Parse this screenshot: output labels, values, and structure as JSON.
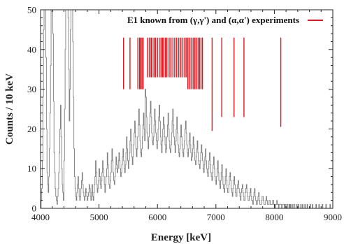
{
  "chart_data": {
    "type": "bar",
    "xlabel": "Energy [keV]",
    "ylabel": "Counts / 10 keV",
    "xlim": [
      4000,
      9000
    ],
    "ylim": [
      0,
      50
    ],
    "x_ticks": [
      4000,
      5000,
      6000,
      7000,
      8000,
      9000
    ],
    "y_ticks": [
      0,
      10,
      20,
      30,
      40,
      50
    ],
    "grid": false,
    "legend_placement": "top-right",
    "colors": {
      "spectrum": "#808080",
      "e1": "#e8141c",
      "axes": "#222222"
    },
    "series": [
      {
        "name": "",
        "style": "histogram",
        "bin_width": 10,
        "x_start": 4000,
        "values": [
          0,
          2,
          5,
          12,
          28,
          45,
          50,
          50,
          50,
          38,
          20,
          9,
          6,
          4,
          8,
          15,
          24,
          36,
          50,
          50,
          50,
          44,
          27,
          14,
          9,
          5,
          3,
          2,
          1,
          3,
          5,
          9,
          14,
          20,
          26,
          18,
          10,
          6,
          4,
          2,
          12,
          25,
          40,
          50,
          50,
          50,
          50,
          48,
          35,
          22,
          30,
          45,
          50,
          50,
          50,
          42,
          28,
          15,
          8,
          5,
          3,
          2,
          4,
          6,
          8,
          5,
          3,
          2,
          3,
          5,
          7,
          9,
          6,
          4,
          3,
          2,
          3,
          5,
          4,
          3,
          2,
          3,
          4,
          6,
          5,
          3,
          2,
          4,
          6,
          3,
          2,
          4,
          6,
          8,
          12,
          9,
          6,
          4,
          5,
          7,
          10,
          8,
          6,
          5,
          7,
          9,
          12,
          10,
          8,
          6,
          4,
          6,
          8,
          10,
          14,
          11,
          8,
          6,
          5,
          7,
          9,
          12,
          15,
          12,
          9,
          7,
          6,
          8,
          10,
          13,
          11,
          9,
          10,
          12,
          14,
          12,
          10,
          8,
          9,
          11,
          13,
          15,
          12,
          10,
          9,
          11,
          14,
          18,
          15,
          12,
          10,
          12,
          14,
          17,
          20,
          16,
          13,
          11,
          13,
          16,
          19,
          22,
          18,
          15,
          13,
          15,
          18,
          21,
          25,
          21,
          17,
          14,
          13,
          15,
          18,
          21,
          24,
          20,
          17,
          30,
          28,
          23,
          19,
          17,
          15,
          18,
          21,
          24,
          27,
          23,
          19,
          17,
          16,
          18,
          21,
          25,
          22,
          19,
          17,
          15,
          17,
          20,
          23,
          26,
          22,
          18,
          16,
          14,
          17,
          20,
          23,
          21,
          18,
          16,
          14,
          15,
          18,
          21,
          24,
          20,
          17,
          15,
          14,
          16,
          19,
          22,
          25,
          21,
          18,
          16,
          14,
          17,
          20,
          23,
          19,
          16,
          14,
          13,
          15,
          18,
          21,
          18,
          16,
          14,
          13,
          15,
          17,
          20,
          22,
          19,
          16,
          14,
          13,
          15,
          17,
          19,
          16,
          14,
          12,
          13,
          15,
          18,
          16,
          14,
          12,
          11,
          13,
          15,
          17,
          14,
          12,
          11,
          10,
          12,
          14,
          16,
          14,
          12,
          10,
          9,
          11,
          13,
          15,
          12,
          10,
          9,
          8,
          10,
          12,
          14,
          11,
          9,
          8,
          7,
          9,
          11,
          13,
          10,
          8,
          7,
          6,
          8,
          10,
          12,
          9,
          7,
          6,
          5,
          7,
          9,
          11,
          8,
          6,
          5,
          4,
          6,
          8,
          10,
          7,
          5,
          4,
          4,
          6,
          8,
          9,
          7,
          5,
          4,
          3,
          5,
          7,
          8,
          6,
          4,
          3,
          3,
          5,
          6,
          7,
          5,
          4,
          3,
          2,
          4,
          5,
          6,
          4,
          3,
          2,
          2,
          4,
          5,
          6,
          4,
          3,
          2,
          2,
          3,
          4,
          5,
          3,
          2,
          2,
          1,
          3,
          4,
          5,
          3,
          2,
          1,
          1,
          2,
          3,
          4,
          2,
          1,
          1,
          1,
          2,
          3,
          3,
          2,
          1,
          1,
          1,
          2,
          3,
          2,
          1,
          1,
          1,
          2,
          2,
          1,
          1,
          1,
          1,
          2,
          2,
          1,
          1,
          0,
          1,
          1,
          2,
          1,
          1,
          0,
          1,
          1,
          1,
          1,
          0,
          0,
          1,
          1,
          1,
          0,
          1,
          0,
          0,
          1,
          1,
          0,
          0,
          1,
          0,
          1,
          0,
          0,
          1,
          0,
          0,
          1,
          1,
          0,
          0,
          0,
          1,
          0,
          0,
          1,
          0,
          0,
          0,
          1,
          0,
          0,
          1,
          0,
          0,
          0,
          1,
          0,
          0,
          0,
          1,
          0,
          0,
          0,
          0,
          1,
          0,
          0,
          0,
          1,
          0,
          0,
          0,
          0,
          0,
          1,
          0,
          0,
          0,
          0,
          1,
          0,
          0,
          0,
          0,
          0,
          1,
          0,
          0,
          0,
          0,
          0,
          1,
          0,
          0,
          0,
          0,
          0,
          0,
          1,
          0,
          0,
          0,
          0,
          0,
          0,
          1,
          0,
          0,
          0,
          0,
          0,
          0,
          0
        ]
      }
    ],
    "e1_legend": "E1 known from (γ,γ') and (α,α') experiments",
    "e1_top": 43,
    "e1_lines": [
      {
        "x": 5420,
        "ymin": 30
      },
      {
        "x": 5530,
        "ymin": 30
      },
      {
        "x": 5665,
        "ymin": 30
      },
      {
        "x": 5695,
        "ymin": 30
      },
      {
        "x": 5715,
        "ymin": 30
      },
      {
        "x": 5735,
        "ymin": 30
      },
      {
        "x": 5755,
        "ymin": 30
      },
      {
        "x": 5830,
        "ymin": 33
      },
      {
        "x": 5860,
        "ymin": 33
      },
      {
        "x": 5890,
        "ymin": 33
      },
      {
        "x": 5905,
        "ymin": 33
      },
      {
        "x": 5940,
        "ymin": 33
      },
      {
        "x": 5965,
        "ymin": 33
      },
      {
        "x": 6000,
        "ymin": 33
      },
      {
        "x": 6030,
        "ymin": 33
      },
      {
        "x": 6060,
        "ymin": 33
      },
      {
        "x": 6085,
        "ymin": 33
      },
      {
        "x": 6105,
        "ymin": 33
      },
      {
        "x": 6135,
        "ymin": 33
      },
      {
        "x": 6160,
        "ymin": 33
      },
      {
        "x": 6200,
        "ymin": 33
      },
      {
        "x": 6230,
        "ymin": 33
      },
      {
        "x": 6265,
        "ymin": 33
      },
      {
        "x": 6295,
        "ymin": 33
      },
      {
        "x": 6330,
        "ymin": 33
      },
      {
        "x": 6365,
        "ymin": 33
      },
      {
        "x": 6400,
        "ymin": 33
      },
      {
        "x": 6435,
        "ymin": 33
      },
      {
        "x": 6465,
        "ymin": 33
      },
      {
        "x": 6490,
        "ymin": 33
      },
      {
        "x": 6520,
        "ymin": 30
      },
      {
        "x": 6545,
        "ymin": 30
      },
      {
        "x": 6575,
        "ymin": 30
      },
      {
        "x": 6610,
        "ymin": 30
      },
      {
        "x": 6640,
        "ymin": 30
      },
      {
        "x": 6665,
        "ymin": 30
      },
      {
        "x": 6695,
        "ymin": 30
      },
      {
        "x": 6720,
        "ymin": 30
      },
      {
        "x": 6745,
        "ymin": 30
      },
      {
        "x": 6770,
        "ymin": 30
      },
      {
        "x": 6935,
        "ymin": 19.5
      },
      {
        "x": 7100,
        "ymin": 23
      },
      {
        "x": 7310,
        "ymin": 23
      },
      {
        "x": 7480,
        "ymin": 23
      },
      {
        "x": 8110,
        "ymin": 20.5
      }
    ]
  }
}
